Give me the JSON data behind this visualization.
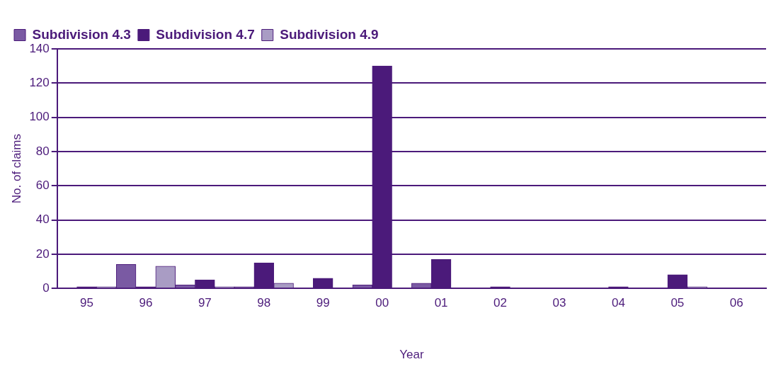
{
  "chart_data": {
    "type": "bar",
    "xlabel": "Year",
    "ylabel": "No. of claims",
    "categories": [
      "95",
      "96",
      "97",
      "98",
      "99",
      "00",
      "01",
      "02",
      "03",
      "04",
      "05",
      "06"
    ],
    "series": [
      {
        "name": "Subdivision 4.3",
        "color": "#7a5aa3",
        "values": [
          0,
          14,
          2,
          1,
          0,
          2,
          3,
          0,
          0,
          0,
          0,
          0
        ]
      },
      {
        "name": "Subdivision 4.7",
        "color": "#4b1a7a",
        "values": [
          1,
          1,
          5,
          15,
          6,
          130,
          17,
          1,
          0,
          1,
          8,
          0
        ]
      },
      {
        "name": "Subdivision 4.9",
        "color": "#a99cc4",
        "values": [
          1,
          13,
          1,
          3,
          0,
          0,
          0,
          0,
          0,
          0,
          1,
          0
        ]
      }
    ],
    "ylim": [
      0,
      140
    ],
    "yticks": [
      0,
      20,
      40,
      60,
      80,
      100,
      120,
      140
    ],
    "grid": "y",
    "legend": "top left"
  }
}
